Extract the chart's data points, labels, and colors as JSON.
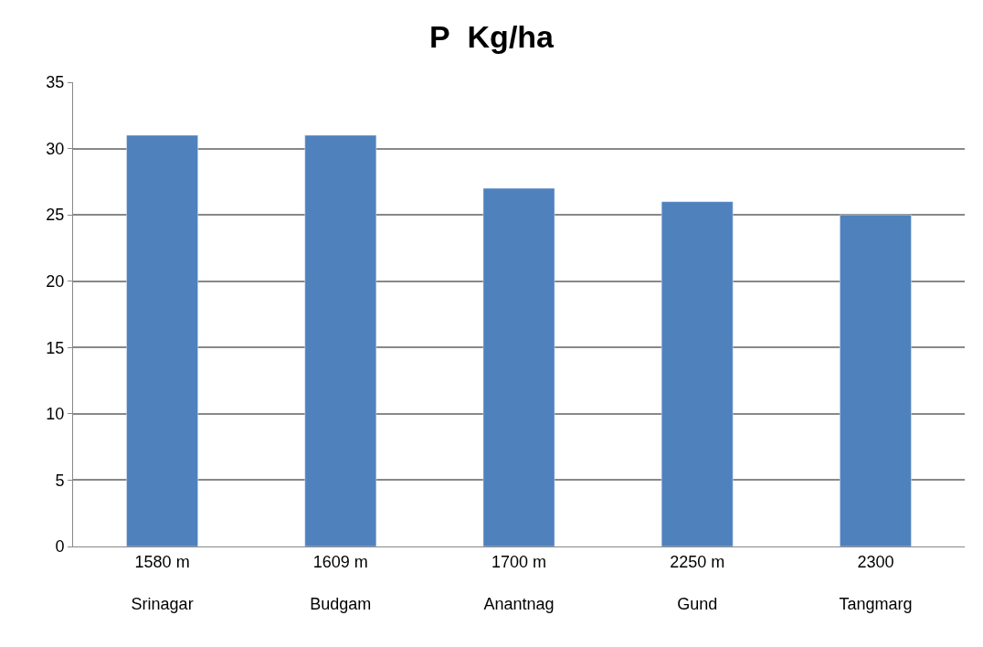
{
  "chart_data": {
    "type": "bar",
    "title": "P  Kg/ha",
    "categories": [
      "1580 m\nSrinagar",
      "1609 m\nBudgam",
      "1700 m\nAnantnag",
      "2250 m\nGund",
      "2300\nTangmarg"
    ],
    "values": [
      31,
      31,
      27,
      26,
      25
    ],
    "color": "#4f81bd",
    "ylim": [
      0,
      35
    ],
    "yticks": [
      0,
      5,
      10,
      15,
      20,
      25,
      30,
      35
    ],
    "grid": "y"
  }
}
